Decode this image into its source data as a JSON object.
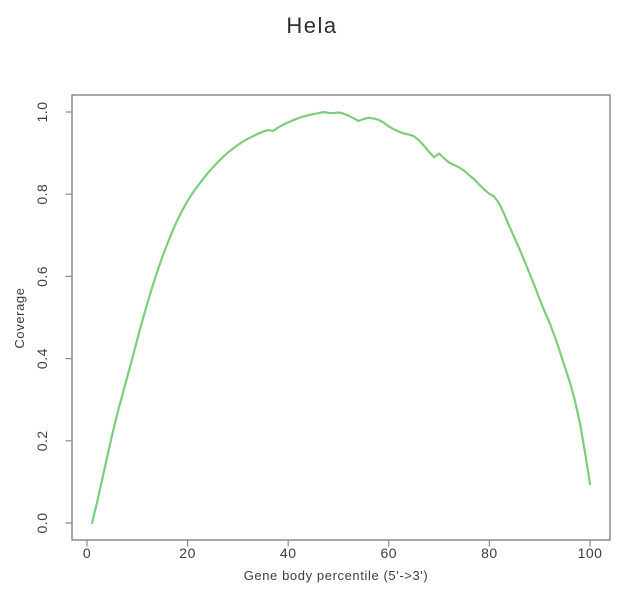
{
  "figure": {
    "background": "#ffffff"
  },
  "colors": {
    "line": "#7ccd7c",
    "axis": "#6e6e6e",
    "tick": "#8a8a8a",
    "text": "#3d3d3d"
  },
  "chart_data": {
    "type": "line",
    "title": "Hela",
    "xlabel": "Gene body percentile (5'->3')",
    "ylabel": "Coverage",
    "xlim": [
      0,
      100
    ],
    "ylim": [
      0.0,
      1.0
    ],
    "xticks": [
      0,
      20,
      40,
      60,
      80,
      100
    ],
    "ytick_labels": [
      "0.0",
      "0.2",
      "0.4",
      "0.6",
      "0.8",
      "1.0"
    ],
    "grid": false,
    "legend": "none",
    "series": [
      {
        "name": "Hela",
        "color": "#7ccd7c",
        "x": [
          1,
          2,
          3,
          4,
          5,
          6,
          7,
          8,
          9,
          10,
          11,
          12,
          13,
          14,
          15,
          16,
          17,
          18,
          19,
          20,
          21,
          22,
          23,
          24,
          25,
          26,
          27,
          28,
          29,
          30,
          31,
          32,
          33,
          34,
          35,
          36,
          37,
          38,
          39,
          40,
          41,
          42,
          43,
          44,
          45,
          46,
          47,
          48,
          49,
          50,
          51,
          52,
          53,
          54,
          55,
          56,
          57,
          58,
          59,
          60,
          61,
          62,
          63,
          64,
          65,
          66,
          67,
          68,
          69,
          70,
          71,
          72,
          73,
          74,
          75,
          76,
          77,
          78,
          79,
          80,
          81,
          82,
          83,
          84,
          85,
          86,
          87,
          88,
          89,
          90,
          91,
          92,
          93,
          94,
          95,
          96,
          97,
          98,
          99,
          100
        ],
        "y": [
          0.0,
          0.05,
          0.105,
          0.16,
          0.215,
          0.265,
          0.31,
          0.355,
          0.4,
          0.447,
          0.492,
          0.535,
          0.575,
          0.613,
          0.648,
          0.68,
          0.71,
          0.738,
          0.762,
          0.784,
          0.803,
          0.82,
          0.836,
          0.851,
          0.865,
          0.878,
          0.89,
          0.901,
          0.911,
          0.92,
          0.928,
          0.935,
          0.941,
          0.947,
          0.952,
          0.956,
          0.954,
          0.962,
          0.969,
          0.975,
          0.98,
          0.985,
          0.989,
          0.992,
          0.995,
          0.997,
          1.0,
          0.998,
          0.997,
          0.999,
          0.996,
          0.991,
          0.985,
          0.978,
          0.983,
          0.986,
          0.984,
          0.981,
          0.974,
          0.965,
          0.958,
          0.952,
          0.948,
          0.945,
          0.941,
          0.931,
          0.918,
          0.903,
          0.89,
          0.899,
          0.887,
          0.877,
          0.871,
          0.865,
          0.857,
          0.846,
          0.836,
          0.823,
          0.811,
          0.801,
          0.794,
          0.776,
          0.75,
          0.721,
          0.694,
          0.666,
          0.637,
          0.607,
          0.576,
          0.544,
          0.514,
          0.486,
          0.453,
          0.418,
          0.38,
          0.342,
          0.298,
          0.243,
          0.172,
          0.095
        ]
      }
    ]
  }
}
